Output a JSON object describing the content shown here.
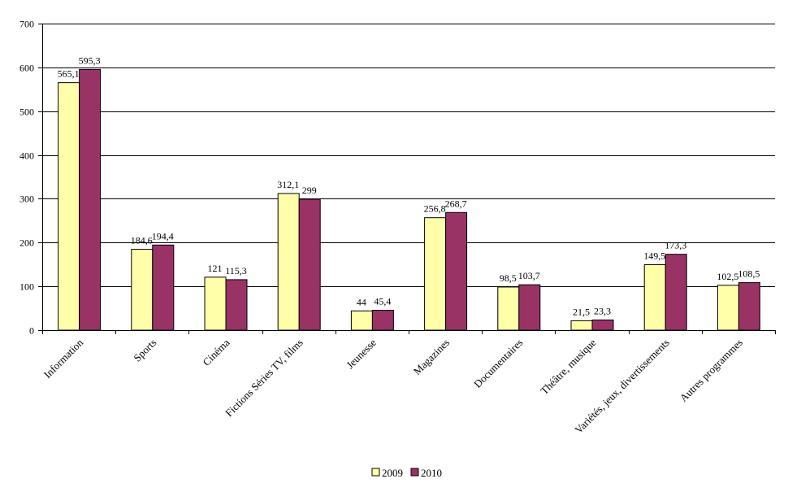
{
  "chart_data": {
    "type": "bar",
    "categories": [
      "Information",
      "Sports",
      "Cinéma",
      "Fictions Séries TV, films",
      "Jeunesse",
      "Magazines",
      "Documentaires",
      "Théâtre, musique",
      "Variétés, jeux, divertissements",
      "Autres programmes"
    ],
    "series": [
      {
        "name": "2009",
        "color": "#FFFFAA",
        "values": [
          565.1,
          184.6,
          121,
          312.1,
          44,
          256.8,
          98.5,
          21.5,
          149.5,
          102.5
        ],
        "labels": [
          "565,1",
          "184,6",
          "121",
          "312,1",
          "44",
          "256,8",
          "98,5",
          "21,5",
          "149,5",
          "102,5"
        ]
      },
      {
        "name": "2010",
        "color": "#993366",
        "values": [
          595.3,
          194.4,
          115.3,
          299,
          45.4,
          268.7,
          103.7,
          23.3,
          173.3,
          108.5
        ],
        "labels": [
          "595,3",
          "194,4",
          "115,3",
          "299",
          "45,4",
          "268,7",
          "103,7",
          "23,3",
          "173,3",
          "108,5"
        ]
      }
    ],
    "title": "",
    "xlabel": "",
    "ylabel": "",
    "ylim": [
      0,
      700
    ],
    "yticks": [
      0,
      100,
      200,
      300,
      400,
      500,
      600,
      700
    ],
    "grid": true,
    "legend": "bottom"
  }
}
